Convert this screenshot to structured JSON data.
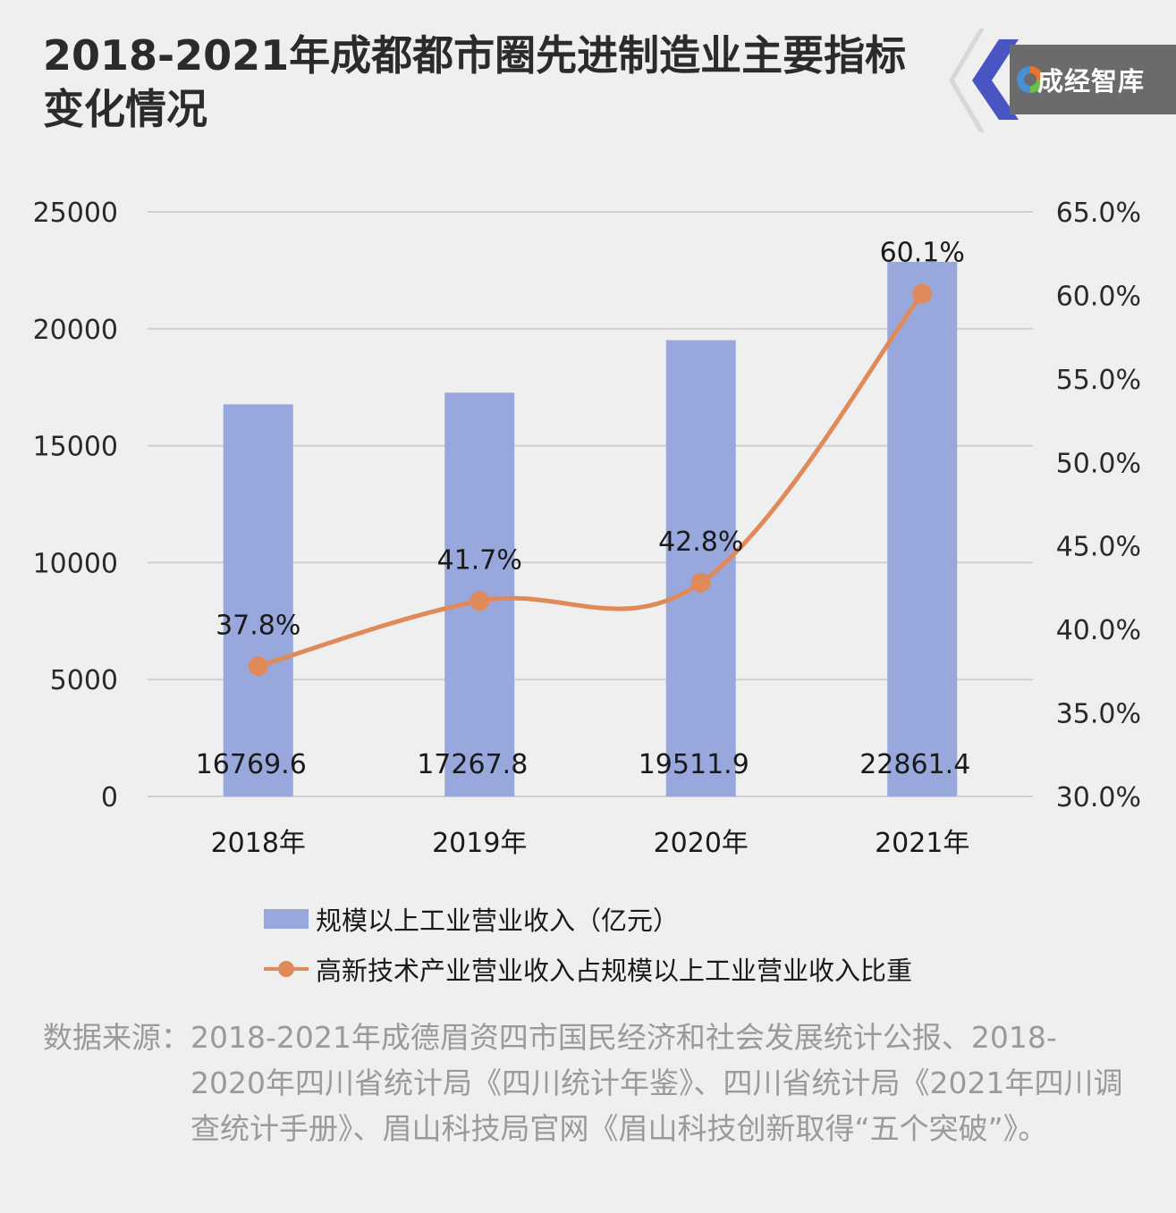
{
  "title": "2018-2021年成都都市圈先进制造业主要指标变化情况",
  "brand": {
    "name": "成经智库",
    "accent": "#4a55c4",
    "swirl_colors": [
      "#e8742a",
      "#4a90d9",
      "#6cc04a"
    ]
  },
  "colors": {
    "bar": "#99a8dc",
    "line": "#e08a5a",
    "grid": "#cfcfcf",
    "background": "#efefef"
  },
  "chart_data": {
    "type": "bar+line",
    "categories": [
      "2018年",
      "2019年",
      "2020年",
      "2021年"
    ],
    "series": [
      {
        "name": "规模以上工业营业收入（亿元）",
        "type": "bar",
        "axis": "left",
        "values": [
          16769.6,
          17267.8,
          19511.9,
          22861.4
        ],
        "labels": [
          "16769.6",
          "17267.8",
          "19511.9",
          "22861.4"
        ]
      },
      {
        "name": "高新技术产业营业收入占规模以上工业营业收入比重",
        "type": "line",
        "axis": "right",
        "values": [
          37.8,
          41.7,
          42.8,
          60.1
        ],
        "labels": [
          "37.8%",
          "41.7%",
          "42.8%",
          "60.1%"
        ]
      }
    ],
    "y_left": {
      "min": 0,
      "max": 25000,
      "ticks": [
        "0",
        "5000",
        "10000",
        "15000",
        "20000",
        "25000"
      ]
    },
    "y_right": {
      "min": 30,
      "max": 65,
      "ticks": [
        "30.0%",
        "35.0%",
        "40.0%",
        "45.0%",
        "50.0%",
        "55.0%",
        "60.0%",
        "65.0%"
      ]
    },
    "grid": true,
    "legend_position": "bottom"
  },
  "source": {
    "label": "数据来源：",
    "text": "2018-2021年成德眉资四市国民经济和社会发展统计公报、2018-2020年四川省统计局《四川统计年鉴》、四川省统计局《2021年四川调查统计手册》、眉山科技局官网《眉山科技创新取得“五个突破”》。"
  }
}
